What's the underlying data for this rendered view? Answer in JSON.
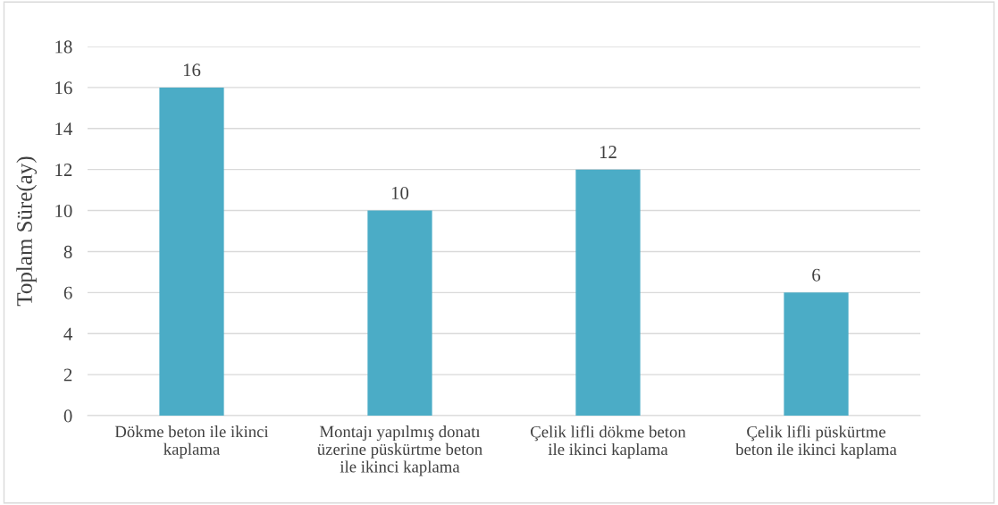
{
  "chart_data": {
    "type": "bar",
    "categories": [
      "Dökme beton ile ikinci\nkaplama",
      "Montajı yapılmış donatı\nüzerine püskürtme beton\nile ikinci kaplama",
      "Çelik lifli dökme beton\nile ikinci kaplama",
      "Çelik lifli püskürtme\nbeton ile ikinci kaplama"
    ],
    "values": [
      16,
      10,
      12,
      6
    ],
    "color": "#4bacc6",
    "ylabel": "Toplam Süre(ay)",
    "ylim": [
      0,
      18
    ],
    "yticks": [
      0,
      2,
      4,
      6,
      8,
      10,
      12,
      14,
      16,
      18
    ],
    "grid": "y",
    "data_labels": true
  }
}
